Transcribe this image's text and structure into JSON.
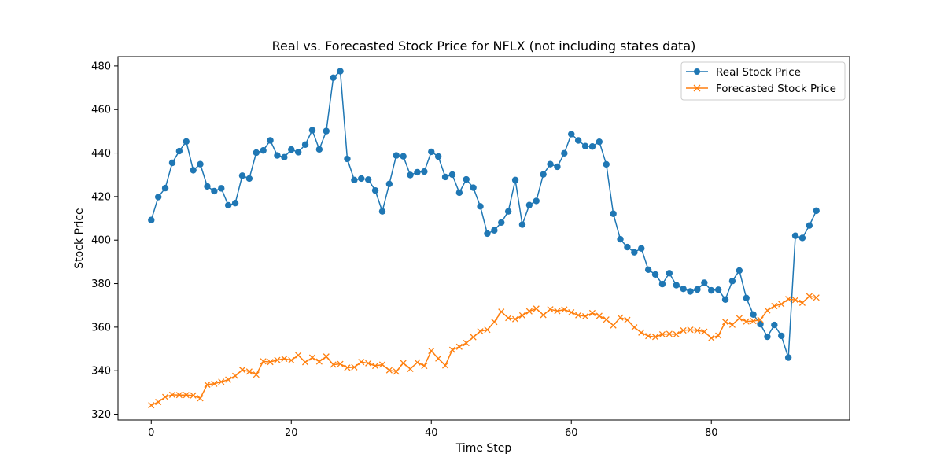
{
  "chart_data": {
    "type": "line",
    "title": "Real vs. Forecasted Stock Price for NFLX (not including states data)",
    "xlabel": "Time Step",
    "ylabel": "Stock Price",
    "xlim": [
      -4.75,
      99.75
    ],
    "ylim": [
      317.3,
      484.3
    ],
    "xticks": [
      0,
      20,
      40,
      60,
      80
    ],
    "yticks": [
      320,
      340,
      360,
      380,
      400,
      420,
      440,
      460,
      480
    ],
    "grid": false,
    "legend_position": "top-right",
    "series": [
      {
        "name": "Real Stock Price",
        "color": "#1f77b4",
        "marker": "circle",
        "values": [
          409.2,
          419.8,
          423.9,
          435.5,
          440.9,
          445.3,
          432.1,
          434.9,
          424.7,
          422.5,
          423.8,
          416.0,
          417.0,
          429.6,
          428.3,
          440.2,
          441.2,
          445.8,
          438.9,
          438.1,
          441.6,
          440.4,
          443.9,
          450.5,
          441.7,
          450.1,
          474.6,
          477.6,
          437.3,
          427.6,
          428.3,
          427.8,
          422.8,
          413.2,
          425.8,
          438.9,
          438.5,
          429.9,
          431.2,
          431.5,
          440.6,
          438.4,
          429.0,
          430.1,
          421.8,
          427.9,
          424.1,
          415.5,
          403.0,
          404.5,
          408.1,
          413.2,
          427.6,
          407.1,
          416.1,
          418.0,
          430.2,
          434.9,
          433.7,
          439.9,
          448.7,
          445.8,
          443.2,
          443.0,
          445.2,
          434.8,
          412.1,
          400.4,
          396.8,
          394.4,
          396.2,
          386.4,
          384.2,
          379.8,
          384.8,
          379.3,
          377.6,
          376.4,
          377.3,
          380.4,
          376.9,
          377.2,
          372.7,
          381.2,
          386.0,
          373.4,
          365.8,
          361.4,
          355.6,
          361.0,
          356.0,
          346.0,
          402.0,
          401.0,
          406.7,
          413.5
        ]
      },
      {
        "name": "Forecasted Stock Price",
        "color": "#ff7f0e",
        "marker": "x",
        "values": [
          324.1,
          325.6,
          327.9,
          328.9,
          328.8,
          328.8,
          328.6,
          327.3,
          333.6,
          334.0,
          334.9,
          335.9,
          337.6,
          340.4,
          339.6,
          338.2,
          344.3,
          344.0,
          344.9,
          345.5,
          344.8,
          347.1,
          343.9,
          346.0,
          344.2,
          346.5,
          342.8,
          343.1,
          341.4,
          341.6,
          344.0,
          343.4,
          342.2,
          342.8,
          340.2,
          339.6,
          343.5,
          340.8,
          343.8,
          342.2,
          349.1,
          345.6,
          342.4,
          349.6,
          351.0,
          352.7,
          355.4,
          358.1,
          358.8,
          362.4,
          367.1,
          364.2,
          363.7,
          365.4,
          367.3,
          368.5,
          365.6,
          368.2,
          367.4,
          368.1,
          366.8,
          365.5,
          365.0,
          366.5,
          365.2,
          363.5,
          360.8,
          364.4,
          363.3,
          359.9,
          357.5,
          355.9,
          355.5,
          356.7,
          356.9,
          356.7,
          358.5,
          358.8,
          358.5,
          357.9,
          355.0,
          356.1,
          362.4,
          361.1,
          364.1,
          362.6,
          362.8,
          363.4,
          367.7,
          369.7,
          370.6,
          372.9,
          372.5,
          371.2,
          374.2,
          373.6
        ]
      }
    ]
  }
}
